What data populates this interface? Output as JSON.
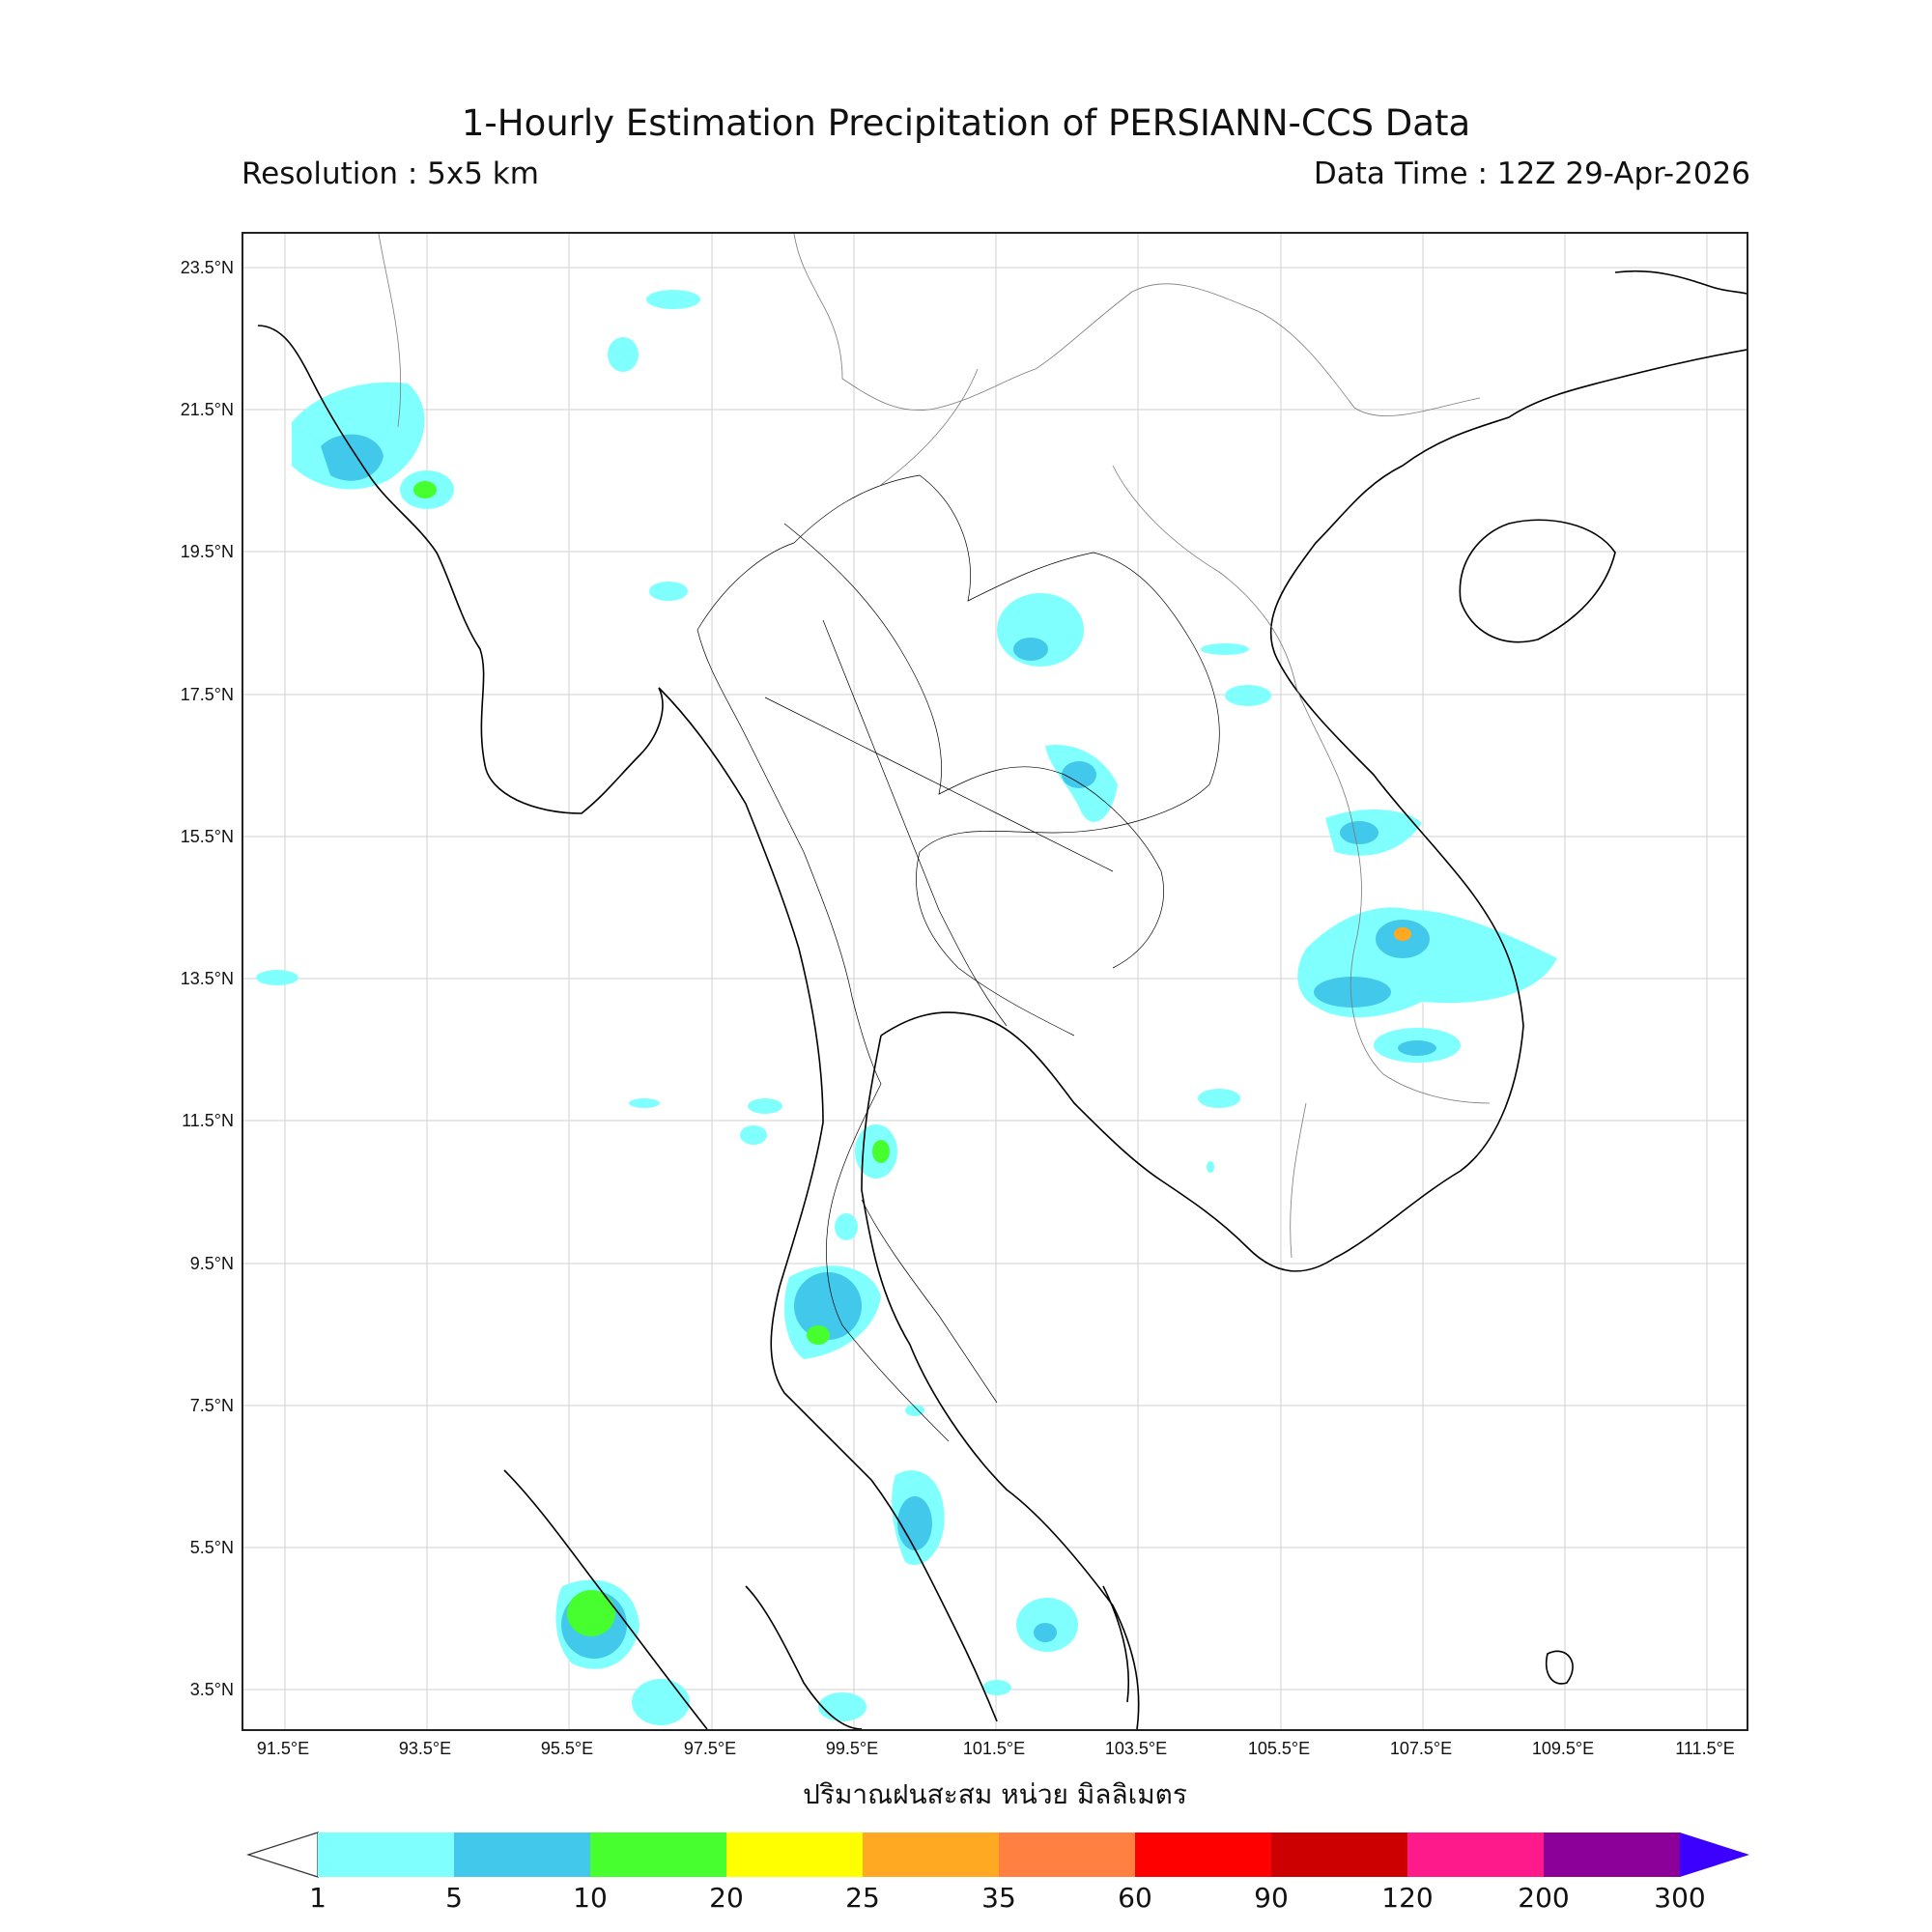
{
  "title": "1-Hourly Estimation Precipitation of PERSIANN-CCS Data",
  "resolution": "Resolution : 5x5 km",
  "data_time": "Data Time : 12Z 29-Apr-2026",
  "x_axis_label": "ปริมาณฝนสะสม หน่วย มิลลิเมตร",
  "lat_ticks": [
    "23.5°N",
    "21.5°N",
    "19.5°N",
    "17.5°N",
    "15.5°N",
    "13.5°N",
    "11.5°N",
    "9.5°N",
    "7.5°N",
    "5.5°N",
    "3.5°N"
  ],
  "lon_ticks": [
    "91.5°E",
    "93.5°E",
    "95.5°E",
    "97.5°E",
    "99.5°E",
    "101.5°E",
    "103.5°E",
    "105.5°E",
    "107.5°E",
    "109.5°E",
    "111.5°E"
  ],
  "colorbar": {
    "labels": [
      "1",
      "5",
      "10",
      "20",
      "25",
      "35",
      "60",
      "90",
      "120",
      "200",
      "300"
    ],
    "colors": [
      "#80ffff",
      "#41c8ea",
      "#47ff2e",
      "#ffff00",
      "#ffa923",
      "#ff8040",
      "#ff0000",
      "#cc0000",
      "#ff1a8c",
      "#8c0099",
      "#3c00ff"
    ]
  }
}
